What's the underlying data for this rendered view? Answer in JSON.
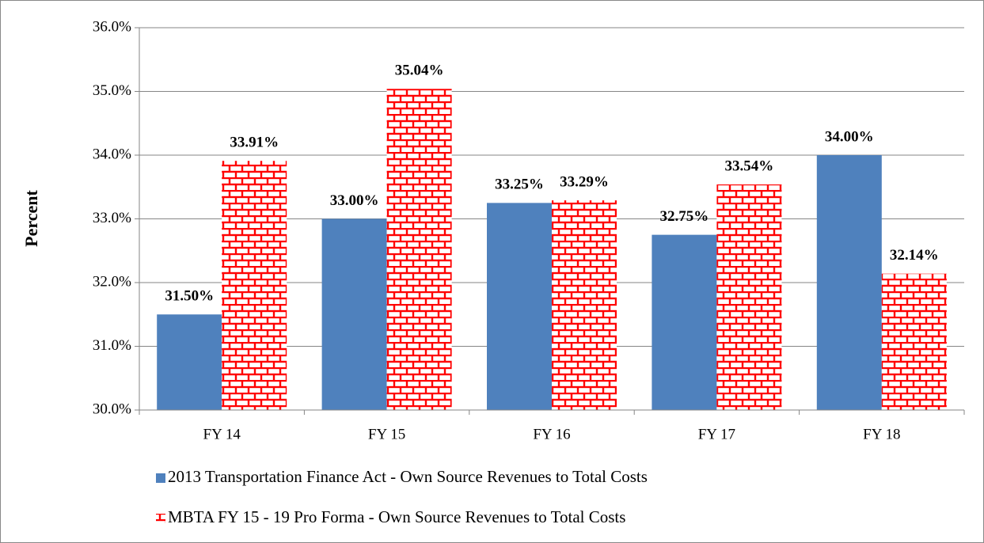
{
  "chart_data": {
    "type": "bar",
    "y_label": "Percent",
    "categories": [
      "FY 14",
      "FY 15",
      "FY 16",
      "FY 17",
      "FY 18"
    ],
    "series": [
      {
        "name": "2013 Transportation Finance Act - Own Source Revenues to Total Costs",
        "color": "#4f81bd",
        "values": [
          31.5,
          33.0,
          33.25,
          32.75,
          34.0
        ],
        "value_labels": [
          "31.50%",
          "33.00%",
          "33.25%",
          "32.75%",
          "34.00%"
        ]
      },
      {
        "name": "MBTA FY 15 - 19 Pro Forma - Own Source Revenues to Total Costs",
        "color": "#ff0000",
        "pattern": "brick",
        "values": [
          33.91,
          35.04,
          33.29,
          33.54,
          32.14
        ],
        "value_labels": [
          "33.91%",
          "35.04%",
          "33.29%",
          "33.54%",
          "32.14%"
        ]
      }
    ],
    "ylim": [
      30,
      36
    ],
    "yticks": [
      {
        "value": 30,
        "label": "30.0%"
      },
      {
        "value": 31,
        "label": "31.0%"
      },
      {
        "value": 32,
        "label": "32.0%"
      },
      {
        "value": 33,
        "label": "33.0%"
      },
      {
        "value": 34,
        "label": "34.0%"
      },
      {
        "value": 35,
        "label": "35.0%"
      },
      {
        "value": 36,
        "label": "36.0%"
      }
    ],
    "grid": true,
    "legend": "bottom"
  }
}
